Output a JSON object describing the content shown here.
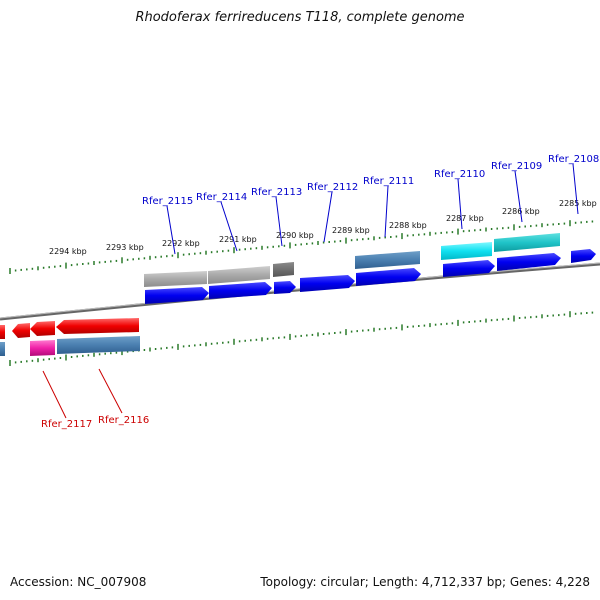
{
  "title": "Rhodoferax ferrireducens T118, complete genome",
  "footer": {
    "accession": "Accession: NC_007908",
    "summary": "Topology: circular; Length: 4,712,337 bp; Genes: 4,228"
  },
  "colors": {
    "label_forward": "#0000cc",
    "label_reverse": "#cc0000",
    "tick": "#2a7a2a",
    "backbone": "#777777"
  },
  "scale_labels": [
    "2294 kbp",
    "2293 kbp",
    "2292 kbp",
    "2291 kbp",
    "2290 kbp",
    "2289 kbp",
    "2288 kbp",
    "2287 kbp",
    "2286 kbp",
    "2285 kbp"
  ],
  "gene_labels": [
    {
      "name": "Rfer_2115",
      "strand": "forward"
    },
    {
      "name": "Rfer_2114",
      "strand": "forward"
    },
    {
      "name": "Rfer_2113",
      "strand": "forward"
    },
    {
      "name": "Rfer_2112",
      "strand": "forward"
    },
    {
      "name": "Rfer_2111",
      "strand": "forward"
    },
    {
      "name": "Rfer_2110",
      "strand": "forward"
    },
    {
      "name": "Rfer_2109",
      "strand": "forward"
    },
    {
      "name": "Rfer_2108",
      "strand": "forward"
    },
    {
      "name": "Rfer_2117",
      "strand": "reverse"
    },
    {
      "name": "Rfer_2116",
      "strand": "reverse"
    }
  ]
}
